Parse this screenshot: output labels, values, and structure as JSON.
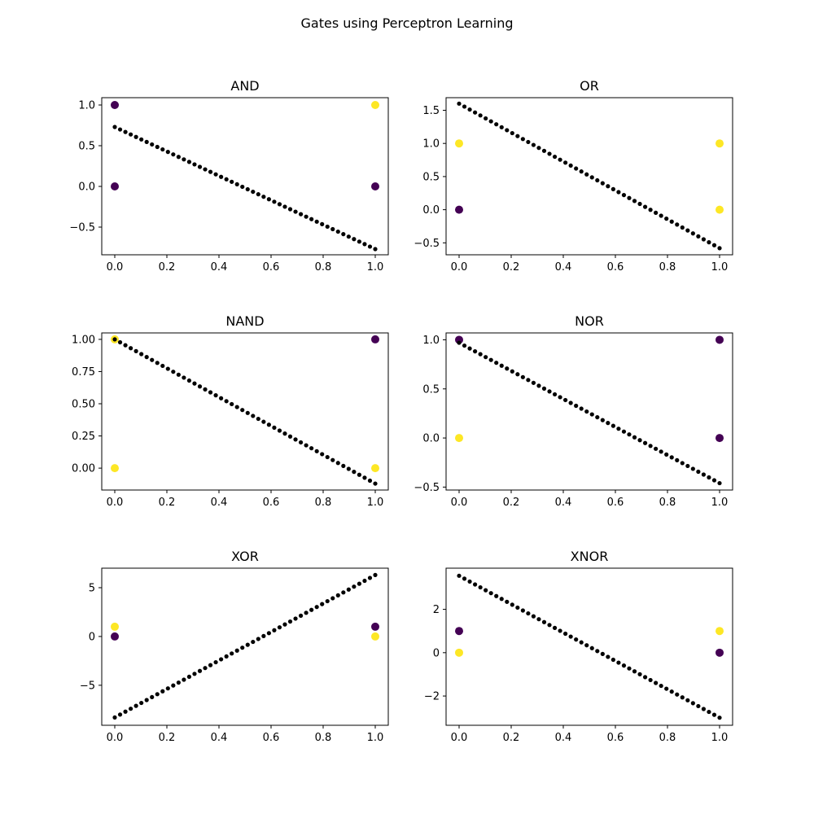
{
  "figure": {
    "title": "Gates using Perceptron Learning"
  },
  "colors": {
    "class0": "#440154",
    "class1": "#fde725",
    "line": "#000000"
  },
  "chart_data": [
    {
      "type": "scatter",
      "title": "AND",
      "xlim": [
        -0.05,
        1.05
      ],
      "ylim": [
        -0.84,
        1.09
      ],
      "xticks": [
        0.0,
        0.2,
        0.4,
        0.6,
        0.8,
        1.0
      ],
      "xtick_labels": [
        "0.0",
        "0.2",
        "0.4",
        "0.6",
        "0.8",
        "1.0"
      ],
      "yticks": [
        -0.5,
        0.0,
        0.5,
        1.0
      ],
      "ytick_labels": [
        "−0.5",
        "0.0",
        "0.5",
        "1.0"
      ],
      "points": [
        {
          "x": 0,
          "y": 0,
          "class": 0
        },
        {
          "x": 0,
          "y": 1,
          "class": 0
        },
        {
          "x": 1,
          "y": 0,
          "class": 0
        },
        {
          "x": 1,
          "y": 1,
          "class": 1
        }
      ],
      "boundary": {
        "x_start": 0,
        "x_end": 1,
        "y_start": 0.73,
        "y_end": -0.77,
        "n": 50
      }
    },
    {
      "type": "scatter",
      "title": "OR",
      "xlim": [
        -0.05,
        1.05
      ],
      "ylim": [
        -0.68,
        1.69
      ],
      "xticks": [
        0.0,
        0.2,
        0.4,
        0.6,
        0.8,
        1.0
      ],
      "xtick_labels": [
        "0.0",
        "0.2",
        "0.4",
        "0.6",
        "0.8",
        "1.0"
      ],
      "yticks": [
        -0.5,
        0.0,
        0.5,
        1.0,
        1.5
      ],
      "ytick_labels": [
        "−0.5",
        "0.0",
        "0.5",
        "1.0",
        "1.5"
      ],
      "points": [
        {
          "x": 0,
          "y": 0,
          "class": 0
        },
        {
          "x": 0,
          "y": 1,
          "class": 1
        },
        {
          "x": 1,
          "y": 0,
          "class": 1
        },
        {
          "x": 1,
          "y": 1,
          "class": 1
        }
      ],
      "boundary": {
        "x_start": 0,
        "x_end": 1,
        "y_start": 1.6,
        "y_end": -0.58,
        "n": 50
      }
    },
    {
      "type": "scatter",
      "title": "NAND",
      "xlim": [
        -0.05,
        1.05
      ],
      "ylim": [
        -0.17,
        1.05
      ],
      "xticks": [
        0.0,
        0.2,
        0.4,
        0.6,
        0.8,
        1.0
      ],
      "xtick_labels": [
        "0.0",
        "0.2",
        "0.4",
        "0.6",
        "0.8",
        "1.0"
      ],
      "yticks": [
        0.0,
        0.25,
        0.5,
        0.75,
        1.0
      ],
      "ytick_labels": [
        "0.00",
        "0.25",
        "0.50",
        "0.75",
        "1.00"
      ],
      "points": [
        {
          "x": 0,
          "y": 0,
          "class": 1
        },
        {
          "x": 0,
          "y": 1,
          "class": 1
        },
        {
          "x": 1,
          "y": 0,
          "class": 1
        },
        {
          "x": 1,
          "y": 1,
          "class": 0
        }
      ],
      "boundary": {
        "x_start": 0,
        "x_end": 1,
        "y_start": 1.0,
        "y_end": -0.12,
        "n": 50
      }
    },
    {
      "type": "scatter",
      "title": "NOR",
      "xlim": [
        -0.05,
        1.05
      ],
      "ylim": [
        -0.53,
        1.07
      ],
      "xticks": [
        0.0,
        0.2,
        0.4,
        0.6,
        0.8,
        1.0
      ],
      "xtick_labels": [
        "0.0",
        "0.2",
        "0.4",
        "0.6",
        "0.8",
        "1.0"
      ],
      "yticks": [
        -0.5,
        0.0,
        0.5,
        1.0
      ],
      "ytick_labels": [
        "−0.5",
        "0.0",
        "0.5",
        "1.0"
      ],
      "points": [
        {
          "x": 0,
          "y": 0,
          "class": 1
        },
        {
          "x": 0,
          "y": 1,
          "class": 0
        },
        {
          "x": 1,
          "y": 0,
          "class": 0
        },
        {
          "x": 1,
          "y": 1,
          "class": 0
        }
      ],
      "boundary": {
        "x_start": 0,
        "x_end": 1,
        "y_start": 0.97,
        "y_end": -0.46,
        "n": 50
      }
    },
    {
      "type": "scatter",
      "title": "XOR",
      "xlim": [
        -0.05,
        1.05
      ],
      "ylim": [
        -9.1,
        7.0
      ],
      "xticks": [
        0.0,
        0.2,
        0.4,
        0.6,
        0.8,
        1.0
      ],
      "xtick_labels": [
        "0.0",
        "0.2",
        "0.4",
        "0.6",
        "0.8",
        "1.0"
      ],
      "yticks": [
        -5,
        0,
        5
      ],
      "ytick_labels": [
        "−5",
        "0",
        "5"
      ],
      "points": [
        {
          "x": 0,
          "y": 0,
          "class": 0
        },
        {
          "x": 0,
          "y": 1,
          "class": 1
        },
        {
          "x": 1,
          "y": 0,
          "class": 1
        },
        {
          "x": 1,
          "y": 1,
          "class": 0
        }
      ],
      "boundary": {
        "x_start": 0,
        "x_end": 1,
        "y_start": -8.3,
        "y_end": 6.3,
        "n": 50
      }
    },
    {
      "type": "scatter",
      "title": "XNOR",
      "xlim": [
        -0.05,
        1.05
      ],
      "ylim": [
        -3.35,
        3.9
      ],
      "xticks": [
        0.0,
        0.2,
        0.4,
        0.6,
        0.8,
        1.0
      ],
      "xtick_labels": [
        "0.0",
        "0.2",
        "0.4",
        "0.6",
        "0.8",
        "1.0"
      ],
      "yticks": [
        -2,
        0,
        2
      ],
      "ytick_labels": [
        "−2",
        "0",
        "2"
      ],
      "points": [
        {
          "x": 0,
          "y": 0,
          "class": 1
        },
        {
          "x": 0,
          "y": 1,
          "class": 0
        },
        {
          "x": 1,
          "y": 0,
          "class": 0
        },
        {
          "x": 1,
          "y": 1,
          "class": 1
        }
      ],
      "boundary": {
        "x_start": 0,
        "x_end": 1,
        "y_start": 3.55,
        "y_end": -3.0,
        "n": 50
      }
    }
  ]
}
